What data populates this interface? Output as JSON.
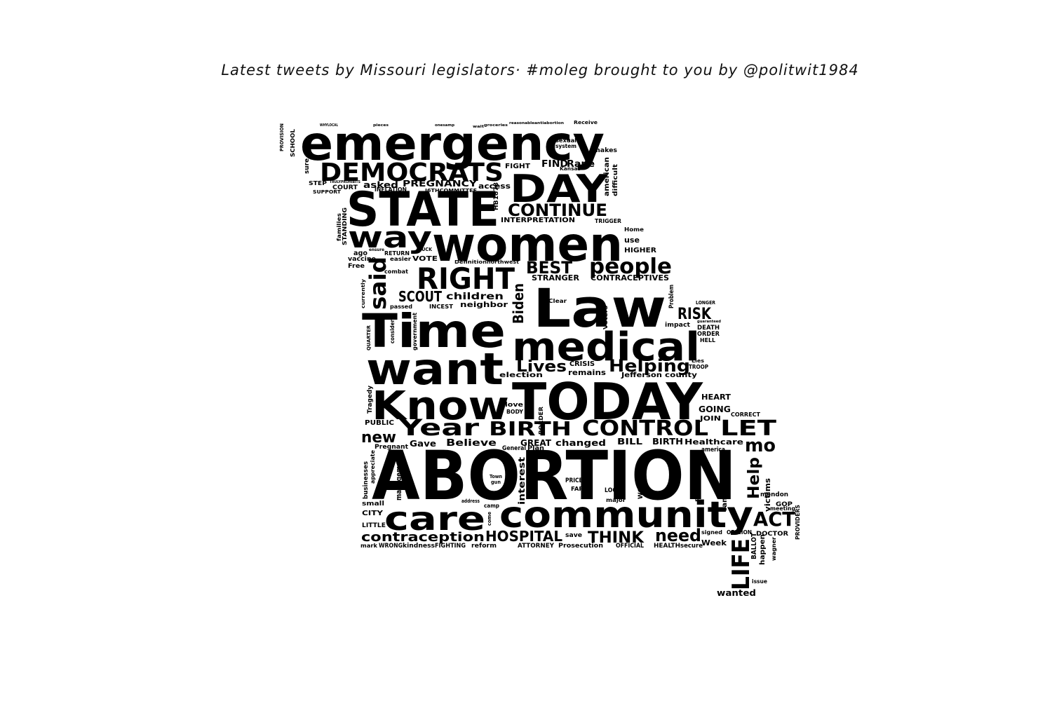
{
  "title": "Latest tweets by Missouri legislators· #moleg brought to you by @politwit1984",
  "colors": {
    "background": "#ffffff",
    "text": "#000000"
  },
  "words": {
    "emergency": "emergency",
    "democrats": "DEMOCRATS",
    "state": "STATE",
    "day": "DAY",
    "continue": "CONTINUE",
    "way": "way",
    "women": "women",
    "right": "RIGHT",
    "said": "said",
    "best": "BEST",
    "people": "people",
    "law": "Law",
    "time": "Time",
    "medical": "medical",
    "want": "want",
    "lives": "Lives",
    "helping": "Helping",
    "know": "Know",
    "today": "TODAY",
    "year": "Year",
    "birth": "BIRTH",
    "control": "CONTROL",
    "let": "LET",
    "mo": "mo",
    "new": "new",
    "abortion": "ABORTION",
    "care": "care",
    "community": "community",
    "act": "ACT",
    "contraception": "contraception",
    "hospital": "HOSPITAL",
    "think": "THINK",
    "need": "need",
    "life": "LIFE",
    "help": "Help",
    "risk": "RISK",
    "biden": "Biden",
    "scout": "SCOUT",
    "children": "children",
    "neighbor": "neighbor",
    "contraceptives": "CONTRACEPTIVES",
    "stranger": "STRANGER",
    "crisis": "CRISIS",
    "remains": "remains",
    "jefferson": "Jefferson",
    "county": "county",
    "election": "election",
    "heart": "HEART",
    "going": "GOING",
    "join": "JOIN",
    "correct": "CORRECT",
    "believe": "Believe",
    "changed": "changed",
    "bill": "BILL",
    "birth_small": "BIRTH",
    "healthcare": "Healthcare",
    "public": "PUBLIC",
    "gave": "Gave",
    "great": "GREAT",
    "pregnant": "Pregnant",
    "management": "management",
    "interest": "interest",
    "victims": "victims",
    "campaign": "campaign",
    "city": "CITY",
    "little": "LITTLE",
    "small": "small",
    "businesses": "businesses",
    "kindness": "kindness",
    "fighting": "FIGHTING",
    "reform": "reform",
    "attorney": "ATTORNEY",
    "prosecution": "Prosecution",
    "official": "OFFICIAL",
    "health": "HEALTH",
    "secure": "secure",
    "week": "Week",
    "doctor": "DOCTOR",
    "wanted": "wanted",
    "issue": "issue",
    "happen": "happen",
    "ballot": "BALLOT",
    "gop": "GOP",
    "find": "FIND",
    "rape": "Rape",
    "fight": "FIGHT",
    "asked": "asked",
    "pregnancy": "PREGNANCY",
    "access": "access",
    "court": "COURT",
    "inflation": "INFLATION",
    "interpretation": "INTERPRETATION",
    "american": "american",
    "difficult": "difficult",
    "use": "use",
    "higher": "HIGHER",
    "vote": "VOTE",
    "vaccine": "vaccine",
    "ago": "ago",
    "free": "Free",
    "standing": "STANDING",
    "families": "families",
    "school": "SCHOOL",
    "sure": "sure",
    "provision": "PROVISION",
    "step": "STEP",
    "support": "SUPPORT",
    "death": "DEATH",
    "order": "ORDER",
    "hell": "HELL",
    "impact": "impact",
    "problem": "Problem",
    "troop": "TROOP",
    "lies": "Lies",
    "america": "america",
    "general": "General",
    "plan": "Plan",
    "prices": "PRICES",
    "look": "LOOK",
    "major": "major",
    "far": "FAR",
    "worked": "WORKED",
    "parents": "Parents",
    "signed": "signed",
    "opinion": "OPINION",
    "save": "save",
    "wrong": "WRONG",
    "mark": "mark",
    "mendon": "mendon",
    "meeting": "meeting",
    "wagner": "wagner",
    "tragedy": "Tragedy",
    "appreciate": "appreciate",
    "combat": "combat",
    "incest": "INCEST",
    "passed": "passed",
    "government": "government",
    "consider": "consider",
    "quarter": "QUARTER",
    "currently": "currently",
    "clear": "Clear",
    "voters": "Voters",
    "border": "BORDER",
    "love": "love",
    "body": "BODY",
    "gun": "gun",
    "town": "Town",
    "camp": "camp",
    "come": "come",
    "address": "address",
    "providers": "PROVIDERS",
    "longer": "LONGER",
    "guaranteed": "guaranteed",
    "hb": "HB1878",
    "committee": "J6THCOMMITTEE",
    "home": "Home",
    "trigger": "TRIGGER",
    "duck": "DUCK",
    "definition": "Definition",
    "northwest": "northwest",
    "easier": "easier",
    "return": "RETURN",
    "ensure": "ensure",
    "sexual": "sexual",
    "system": "system",
    "makes": "makes",
    "kansas": "Kansas",
    "receive": "Receive",
    "wait": "wait",
    "pieces": "pieces",
    "onesamp": "onesamp",
    "groceries": "groceries",
    "reasonable": "reasonable",
    "antiabortion": "antiabortion",
    "wholocal": "WHYLOCAL",
    "truly": "TRULYPROHIBITS"
  }
}
